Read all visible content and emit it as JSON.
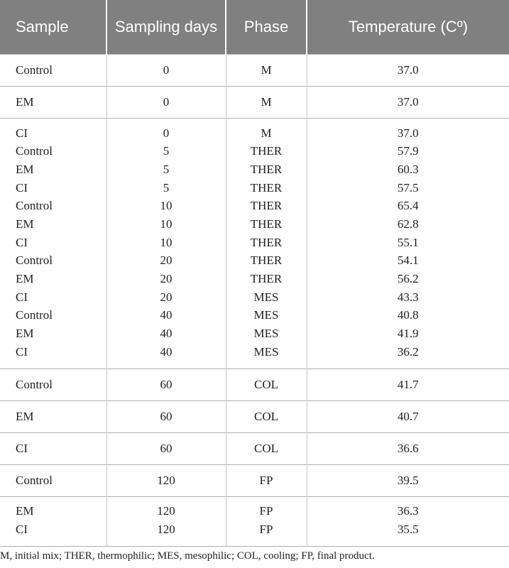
{
  "table": {
    "header": [
      "Sample",
      "Sampling days",
      "Phase",
      "Temperature (Cº)"
    ],
    "groups": [
      [
        [
          "Control",
          "0",
          "M",
          "37.0"
        ]
      ],
      [
        [
          "EM",
          "0",
          "M",
          "37.0"
        ]
      ],
      [
        [
          "CI",
          "0",
          "M",
          "37.0"
        ],
        [
          "Control",
          "5",
          "THER",
          "57.9"
        ],
        [
          "EM",
          "5",
          "THER",
          "60.3"
        ],
        [
          "CI",
          "5",
          "THER",
          "57.5"
        ],
        [
          "Control",
          "10",
          "THER",
          "65.4"
        ],
        [
          "EM",
          "10",
          "THER",
          "62.8"
        ],
        [
          "CI",
          "10",
          "THER",
          "55.1"
        ],
        [
          "Control",
          "20",
          "THER",
          "54.1"
        ],
        [
          "EM",
          "20",
          "THER",
          "56.2"
        ],
        [
          "CI",
          "20",
          "MES",
          "43.3"
        ],
        [
          "Control",
          "40",
          "MES",
          "40.8"
        ],
        [
          "EM",
          "40",
          "MES",
          "41.9"
        ],
        [
          "CI",
          "40",
          "MES",
          "36.2"
        ]
      ],
      [
        [
          "Control",
          "60",
          "COL",
          "41.7"
        ]
      ],
      [
        [
          "EM",
          "60",
          "COL",
          "40.7"
        ]
      ],
      [
        [
          "CI",
          "60",
          "COL",
          "36.6"
        ]
      ],
      [
        [
          "Control",
          "120",
          "FP",
          "39.5"
        ]
      ],
      [
        [
          "EM",
          "120",
          "FP",
          "36.3"
        ],
        [
          "CI",
          "120",
          "FP",
          "35.5"
        ]
      ]
    ],
    "footnote": "M, initial mix; THER, thermophilic; MES, mesophilic; COL, cooling; FP, final product."
  }
}
